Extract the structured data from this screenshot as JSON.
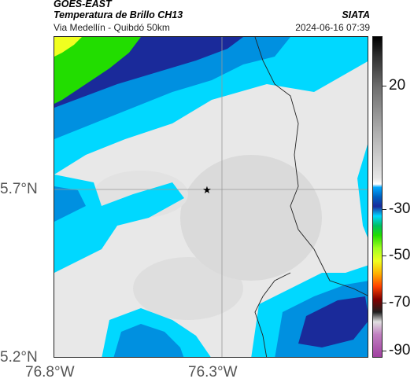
{
  "header": {
    "satellite": "GOES-EAST",
    "product": "Temperatura de Brillo CH13",
    "location": "Via Medellín - Quibdó 50km",
    "agency": "SIATA",
    "timestamp": "2024-06-16 07:39"
  },
  "axes": {
    "lat_labels": [
      "5.7°N",
      "5.2°N"
    ],
    "lon_labels": [
      "76.8°W",
      "76.3°W"
    ]
  },
  "colorbar": {
    "labels": [
      "20",
      "-30",
      "-50",
      "-70",
      "-90"
    ]
  },
  "colors": {
    "cloud_cold": "#1a2a9a",
    "cloud_mid": "#0090e0",
    "cyan": "#00d8ff",
    "green": "#22dd00",
    "yellow": "#f0ff20",
    "clear_gray": "#e9e9e9"
  }
}
